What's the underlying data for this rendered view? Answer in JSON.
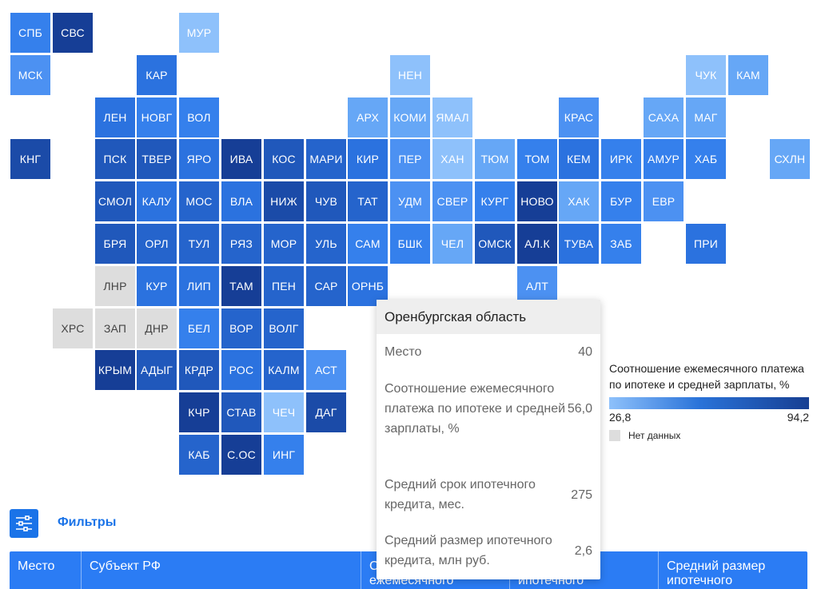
{
  "colors": {
    "c1": "#8ec1fb",
    "c2": "#66a7f6",
    "c3": "#4c91f2",
    "c4": "#3580ec",
    "c5": "#2b72df",
    "c6": "#2564cc",
    "c7": "#2058bb",
    "c8": "#1b4ba8",
    "c9": "#163e96",
    "nodata": "#dddddd"
  },
  "map": {
    "tiles": [
      {
        "label": "СПБ",
        "c": 0,
        "r": 0,
        "color": "c4"
      },
      {
        "label": "СВС",
        "c": 1,
        "r": 0,
        "color": "c9"
      },
      {
        "label": "МУР",
        "c": 4,
        "r": 0,
        "color": "c1"
      },
      {
        "label": "МСК",
        "c": 0,
        "r": 1,
        "color": "c3"
      },
      {
        "label": "КАР",
        "c": 3,
        "r": 1,
        "color": "c5"
      },
      {
        "label": "НЕН",
        "c": 9,
        "r": 1,
        "color": "c1"
      },
      {
        "label": "ЧУК",
        "c": 16,
        "r": 1,
        "color": "c1"
      },
      {
        "label": "КАМ",
        "c": 17,
        "r": 1,
        "color": "c2"
      },
      {
        "label": "ЛЕН",
        "c": 2,
        "r": 2,
        "color": "c5"
      },
      {
        "label": "НОВГ",
        "c": 3,
        "r": 2,
        "color": "c4"
      },
      {
        "label": "ВОЛ",
        "c": 4,
        "r": 2,
        "color": "c4"
      },
      {
        "label": "АРХ",
        "c": 8,
        "r": 2,
        "color": "c2"
      },
      {
        "label": "КОМИ",
        "c": 9,
        "r": 2,
        "color": "c2"
      },
      {
        "label": "ЯМАЛ",
        "c": 10,
        "r": 2,
        "color": "c1"
      },
      {
        "label": "КРАС",
        "c": 13,
        "r": 2,
        "color": "c3"
      },
      {
        "label": "САХА",
        "c": 15,
        "r": 2,
        "color": "c2"
      },
      {
        "label": "МАГ",
        "c": 16,
        "r": 2,
        "color": "c2"
      },
      {
        "label": "КНГ",
        "c": 0,
        "r": 3,
        "color": "c8"
      },
      {
        "label": "ПСК",
        "c": 2,
        "r": 3,
        "color": "c7"
      },
      {
        "label": "ТВЕР",
        "c": 3,
        "r": 3,
        "color": "c7"
      },
      {
        "label": "ЯРО",
        "c": 4,
        "r": 3,
        "color": "c5"
      },
      {
        "label": "ИВА",
        "c": 5,
        "r": 3,
        "color": "c9"
      },
      {
        "label": "КОС",
        "c": 6,
        "r": 3,
        "color": "c7"
      },
      {
        "label": "МАРИ",
        "c": 7,
        "r": 3,
        "color": "c6"
      },
      {
        "label": "КИР",
        "c": 8,
        "r": 3,
        "color": "c5"
      },
      {
        "label": "ПЕР",
        "c": 9,
        "r": 3,
        "color": "c3"
      },
      {
        "label": "ХАН",
        "c": 10,
        "r": 3,
        "color": "c1"
      },
      {
        "label": "ТЮМ",
        "c": 11,
        "r": 3,
        "color": "c2"
      },
      {
        "label": "ТОМ",
        "c": 12,
        "r": 3,
        "color": "c4"
      },
      {
        "label": "КЕМ",
        "c": 13,
        "r": 3,
        "color": "c5"
      },
      {
        "label": "ИРК",
        "c": 14,
        "r": 3,
        "color": "c4"
      },
      {
        "label": "АМУР",
        "c": 15,
        "r": 3,
        "color": "c4"
      },
      {
        "label": "ХАБ",
        "c": 16,
        "r": 3,
        "color": "c4"
      },
      {
        "label": "СХЛН",
        "c": 18,
        "r": 3,
        "color": "c2"
      },
      {
        "label": "СМОЛ",
        "c": 2,
        "r": 4,
        "color": "c7"
      },
      {
        "label": "КАЛУ",
        "c": 3,
        "r": 4,
        "color": "c5"
      },
      {
        "label": "МОС",
        "c": 4,
        "r": 4,
        "color": "c6"
      },
      {
        "label": "ВЛА",
        "c": 5,
        "r": 4,
        "color": "c5"
      },
      {
        "label": "НИЖ",
        "c": 6,
        "r": 4,
        "color": "c8"
      },
      {
        "label": "ЧУВ",
        "c": 7,
        "r": 4,
        "color": "c7"
      },
      {
        "label": "ТАТ",
        "c": 8,
        "r": 4,
        "color": "c6"
      },
      {
        "label": "УДМ",
        "c": 9,
        "r": 4,
        "color": "c3"
      },
      {
        "label": "СВЕР",
        "c": 10,
        "r": 4,
        "color": "c3"
      },
      {
        "label": "КУРГ",
        "c": 11,
        "r": 4,
        "color": "c4"
      },
      {
        "label": "НОВО",
        "c": 12,
        "r": 4,
        "color": "c9"
      },
      {
        "label": "ХАК",
        "c": 13,
        "r": 4,
        "color": "c2"
      },
      {
        "label": "БУР",
        "c": 14,
        "r": 4,
        "color": "c4"
      },
      {
        "label": "ЕВР",
        "c": 15,
        "r": 4,
        "color": "c3"
      },
      {
        "label": "БРЯ",
        "c": 2,
        "r": 5,
        "color": "c7"
      },
      {
        "label": "ОРЛ",
        "c": 3,
        "r": 5,
        "color": "c6"
      },
      {
        "label": "ТУЛ",
        "c": 4,
        "r": 5,
        "color": "c6"
      },
      {
        "label": "РЯЗ",
        "c": 5,
        "r": 5,
        "color": "c6"
      },
      {
        "label": "МОР",
        "c": 6,
        "r": 5,
        "color": "c6"
      },
      {
        "label": "УЛЬ",
        "c": 7,
        "r": 5,
        "color": "c6"
      },
      {
        "label": "САМ",
        "c": 8,
        "r": 5,
        "color": "c4"
      },
      {
        "label": "БШК",
        "c": 9,
        "r": 5,
        "color": "c4"
      },
      {
        "label": "ЧЕЛ",
        "c": 10,
        "r": 5,
        "color": "c2"
      },
      {
        "label": "ОМСК",
        "c": 11,
        "r": 5,
        "color": "c7"
      },
      {
        "label": "АЛ.К",
        "c": 12,
        "r": 5,
        "color": "c9"
      },
      {
        "label": "ТУВА",
        "c": 13,
        "r": 5,
        "color": "c5"
      },
      {
        "label": "ЗАБ",
        "c": 14,
        "r": 5,
        "color": "c4"
      },
      {
        "label": "ПРИ",
        "c": 16,
        "r": 5,
        "color": "c5"
      },
      {
        "label": "ЛНР",
        "c": 2,
        "r": 6,
        "color": "nodata"
      },
      {
        "label": "КУР",
        "c": 3,
        "r": 6,
        "color": "c5"
      },
      {
        "label": "ЛИП",
        "c": 4,
        "r": 6,
        "color": "c5"
      },
      {
        "label": "ТАМ",
        "c": 5,
        "r": 6,
        "color": "c9"
      },
      {
        "label": "ПЕН",
        "c": 6,
        "r": 6,
        "color": "c6"
      },
      {
        "label": "САР",
        "c": 7,
        "r": 6,
        "color": "c6"
      },
      {
        "label": "ОРНБ",
        "c": 8,
        "r": 6,
        "color": "c5"
      },
      {
        "label": "АЛТ",
        "c": 12,
        "r": 6,
        "color": "c3"
      },
      {
        "label": "ХРС",
        "c": 1,
        "r": 7,
        "color": "nodata"
      },
      {
        "label": "ЗАП",
        "c": 2,
        "r": 7,
        "color": "nodata"
      },
      {
        "label": "ДНР",
        "c": 3,
        "r": 7,
        "color": "nodata"
      },
      {
        "label": "БЕЛ",
        "c": 4,
        "r": 7,
        "color": "c4"
      },
      {
        "label": "ВОР",
        "c": 5,
        "r": 7,
        "color": "c6"
      },
      {
        "label": "ВОЛГ",
        "c": 6,
        "r": 7,
        "color": "c6"
      },
      {
        "label": "КРЫМ",
        "c": 2,
        "r": 8,
        "color": "c9"
      },
      {
        "label": "АДЫГ",
        "c": 3,
        "r": 8,
        "color": "c7"
      },
      {
        "label": "КРДР",
        "c": 4,
        "r": 8,
        "color": "c7"
      },
      {
        "label": "РОС",
        "c": 5,
        "r": 8,
        "color": "c5"
      },
      {
        "label": "КАЛМ",
        "c": 6,
        "r": 8,
        "color": "c6"
      },
      {
        "label": "АСТ",
        "c": 7,
        "r": 8,
        "color": "c3"
      },
      {
        "label": "КЧР",
        "c": 4,
        "r": 9,
        "color": "c9"
      },
      {
        "label": "СТАВ",
        "c": 5,
        "r": 9,
        "color": "c7"
      },
      {
        "label": "ЧЕЧ",
        "c": 6,
        "r": 9,
        "color": "c1"
      },
      {
        "label": "ДАГ",
        "c": 7,
        "r": 9,
        "color": "c8"
      },
      {
        "label": "КАБ",
        "c": 4,
        "r": 10,
        "color": "c6"
      },
      {
        "label": "С.ОС",
        "c": 5,
        "r": 10,
        "color": "c9"
      },
      {
        "label": "ИНГ",
        "c": 6,
        "r": 10,
        "color": "c4"
      }
    ]
  },
  "tooltip": {
    "title": "Оренбургская область",
    "rows": [
      {
        "label": "Место",
        "value": "40"
      },
      {
        "label": "Соотношение ежемесячного платежа по ипотеке и средней зарплаты, %",
        "value": "56,0"
      },
      {
        "label": "Средний срок ипотечного кредита, мес.",
        "value": "275"
      },
      {
        "label": "Средний размер ипотечного кредита, млн руб.",
        "value": "2,6"
      }
    ]
  },
  "legend": {
    "title": "Соотношение ежемесячного платежа по ипотеке и средней зарплаты, %",
    "min": "26,8",
    "max": "94,2",
    "nodata": "Нет данных"
  },
  "filters": {
    "label": "Фильтры",
    "icon": "sliders-icon"
  },
  "table": {
    "headers": [
      "Место",
      "Субъект РФ",
      "Соотношение ежемесячного",
      "Средний срок ипотечного",
      "Средний размер ипотечного"
    ]
  }
}
